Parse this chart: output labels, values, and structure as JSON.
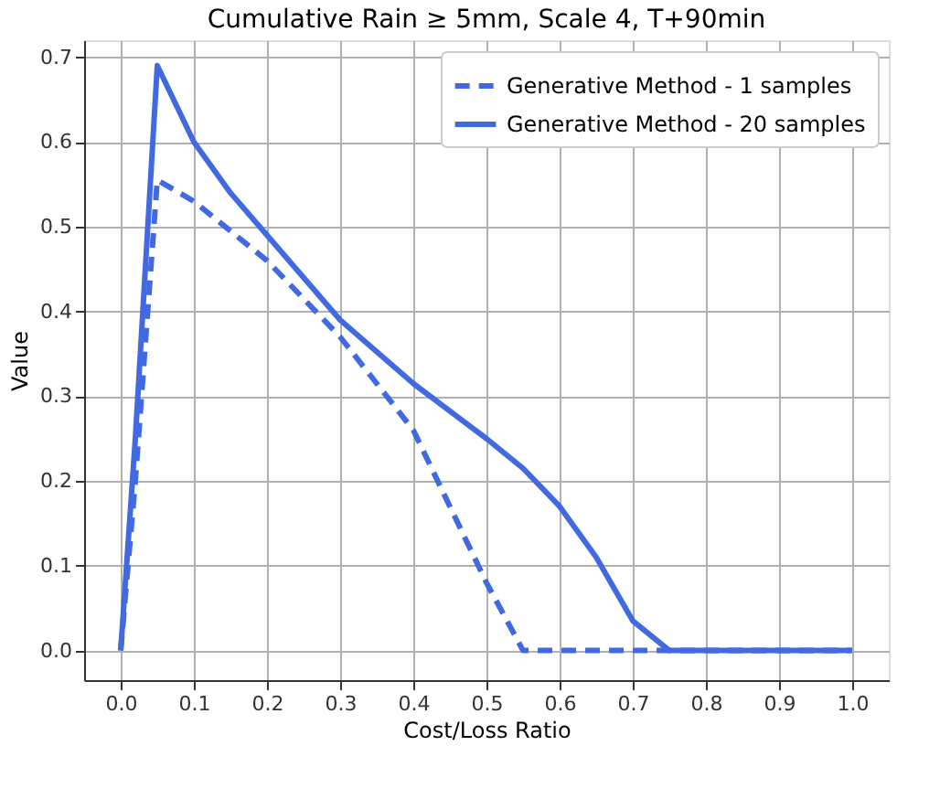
{
  "chart_data": {
    "type": "line",
    "title": "Cumulative Rain  ≥  5mm, Scale 4, T+90min",
    "xlabel": "Cost/Loss Ratio",
    "ylabel": "Value",
    "series": [
      {
        "name": "Generative Method - 1 samples",
        "color": "#4169e1",
        "line_style": "dashed",
        "x": [
          0,
          0.02,
          0.05,
          0.1,
          0.2,
          0.3,
          0.4,
          0.5,
          0.55,
          0.6,
          0.7,
          0.8,
          0.9,
          1.0
        ],
        "values": [
          0,
          0.2,
          0.555,
          0.53,
          0.46,
          0.37,
          0.26,
          0.08,
          0,
          0,
          0,
          0,
          0,
          0
        ]
      },
      {
        "name": "Generative Method - 20 samples",
        "color": "#4169e1",
        "line_style": "solid",
        "x": [
          0,
          0.02,
          0.05,
          0.1,
          0.15,
          0.2,
          0.3,
          0.4,
          0.5,
          0.55,
          0.6,
          0.65,
          0.7,
          0.75,
          0.8,
          0.9,
          1.0
        ],
        "values": [
          0,
          0.25,
          0.69,
          0.6,
          0.54,
          0.49,
          0.39,
          0.315,
          0.25,
          0.215,
          0.17,
          0.11,
          0.035,
          0,
          0,
          0,
          0
        ]
      }
    ],
    "xlim": [
      -0.05,
      1.05
    ],
    "ylim": [
      -0.035,
      0.72
    ],
    "xticks": [
      {
        "value": 0,
        "label": "0.0"
      },
      0.1,
      0.2,
      0.3,
      0.4,
      0.5,
      0.6,
      0.7,
      0.8,
      0.9,
      {
        "value": 1,
        "label": "1.0"
      }
    ],
    "yticks": [
      {
        "value": 0,
        "label": "0.0"
      },
      0.1,
      0.2,
      0.3,
      0.4,
      0.5,
      0.6,
      0.7
    ],
    "grid": true,
    "legend": "top right",
    "marker": "none"
  }
}
